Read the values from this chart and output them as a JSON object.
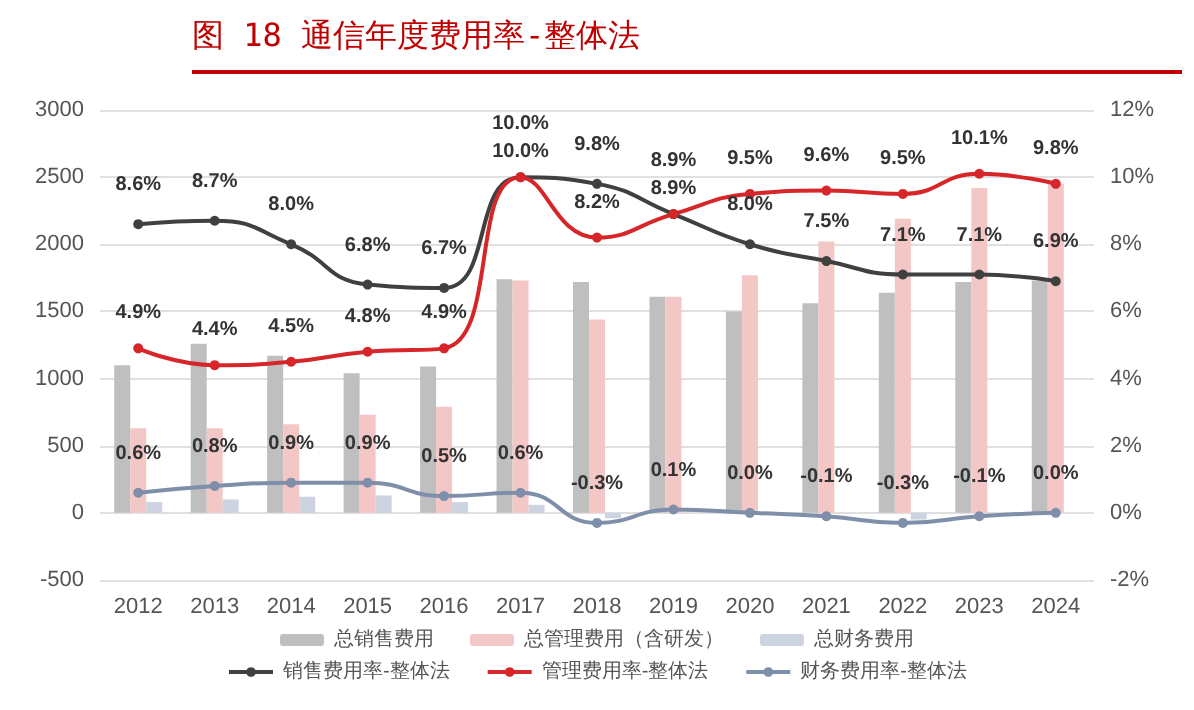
{
  "chart_data": {
    "type": "bar",
    "title": "图 18  通信年度费用率-整体法",
    "categories": [
      "2012",
      "2013",
      "2014",
      "2015",
      "2016",
      "2017",
      "2018",
      "2019",
      "2020",
      "2021",
      "2022",
      "2023",
      "2024"
    ],
    "series": [
      {
        "name": "总销售费用",
        "color": "#bfbfbf",
        "values": [
          1100,
          1260,
          1170,
          1040,
          1090,
          1740,
          1720,
          1610,
          1500,
          1560,
          1640,
          1720,
          1730
        ]
      },
      {
        "name": "总管理费用（含研发）",
        "color": "#f4c7c7",
        "values": [
          630,
          630,
          660,
          730,
          790,
          1730,
          1440,
          1610,
          1770,
          2020,
          2190,
          2420,
          2450
        ]
      },
      {
        "name": "总财务费用",
        "color": "#cdd3e0",
        "values": [
          80,
          100,
          120,
          130,
          80,
          60,
          -40,
          null,
          0,
          null,
          -50,
          null,
          0
        ]
      },
      {
        "name": "销售费用率-整体法",
        "type": "line",
        "axis": "y2",
        "color": "#404040",
        "values": [
          8.6,
          8.7,
          8.0,
          6.8,
          6.7,
          10.0,
          9.8,
          8.9,
          8.0,
          7.5,
          7.1,
          7.1,
          6.9
        ],
        "value_labels": [
          "8.6%",
          "8.7%",
          "8.0%",
          "6.8%",
          "6.7%",
          "10.0%",
          "9.8%",
          "8.9%",
          "8.0%",
          "7.5%",
          "7.1%",
          "7.1%",
          "6.9%"
        ]
      },
      {
        "name": "管理费用率-整体法",
        "type": "line",
        "axis": "y2",
        "color": "#d7262a",
        "values": [
          4.9,
          4.4,
          4.5,
          4.8,
          4.9,
          10.0,
          8.2,
          8.9,
          9.5,
          9.6,
          9.5,
          10.1,
          9.8
        ],
        "value_labels": [
          "4.9%",
          "4.4%",
          "4.5%",
          "4.8%",
          "4.9%",
          "10.0%",
          "8.2%",
          "8.9%",
          "9.5%",
          "9.6%",
          "9.5%",
          "10.1%",
          "9.8%"
        ]
      },
      {
        "name": "财务费用率-整体法",
        "type": "line",
        "axis": "y2",
        "color": "#7f8faa",
        "values": [
          0.6,
          0.8,
          0.9,
          0.9,
          0.5,
          0.6,
          -0.3,
          0.1,
          0.0,
          -0.1,
          -0.3,
          -0.1,
          0.0
        ],
        "value_labels": [
          "0.6%",
          "0.8%",
          "0.9%",
          "0.9%",
          "0.5%",
          "0.6%",
          "-0.3%",
          "0.1%",
          "0.0%",
          "-0.1%",
          "-0.3%",
          "-0.1%",
          "0.0%"
        ]
      }
    ],
    "ylim": [
      -500,
      3000
    ],
    "yticks": [
      -500,
      0,
      500,
      1000,
      1500,
      2000,
      2500,
      3000
    ],
    "y2lim": [
      -2,
      12
    ],
    "y2ticks": [
      {
        "value": -2,
        "label": "-2%"
      },
      {
        "value": 0,
        "label": "0%"
      },
      {
        "value": 2,
        "label": "2%"
      },
      {
        "value": 4,
        "label": "4%"
      },
      {
        "value": 6,
        "label": "6%"
      },
      {
        "value": 8,
        "label": "8%"
      },
      {
        "value": 10,
        "label": "10%"
      },
      {
        "value": 12,
        "label": "12%"
      }
    ],
    "grid": "y",
    "legend": "bottom",
    "marker": "circle",
    "line_style": "solid"
  }
}
